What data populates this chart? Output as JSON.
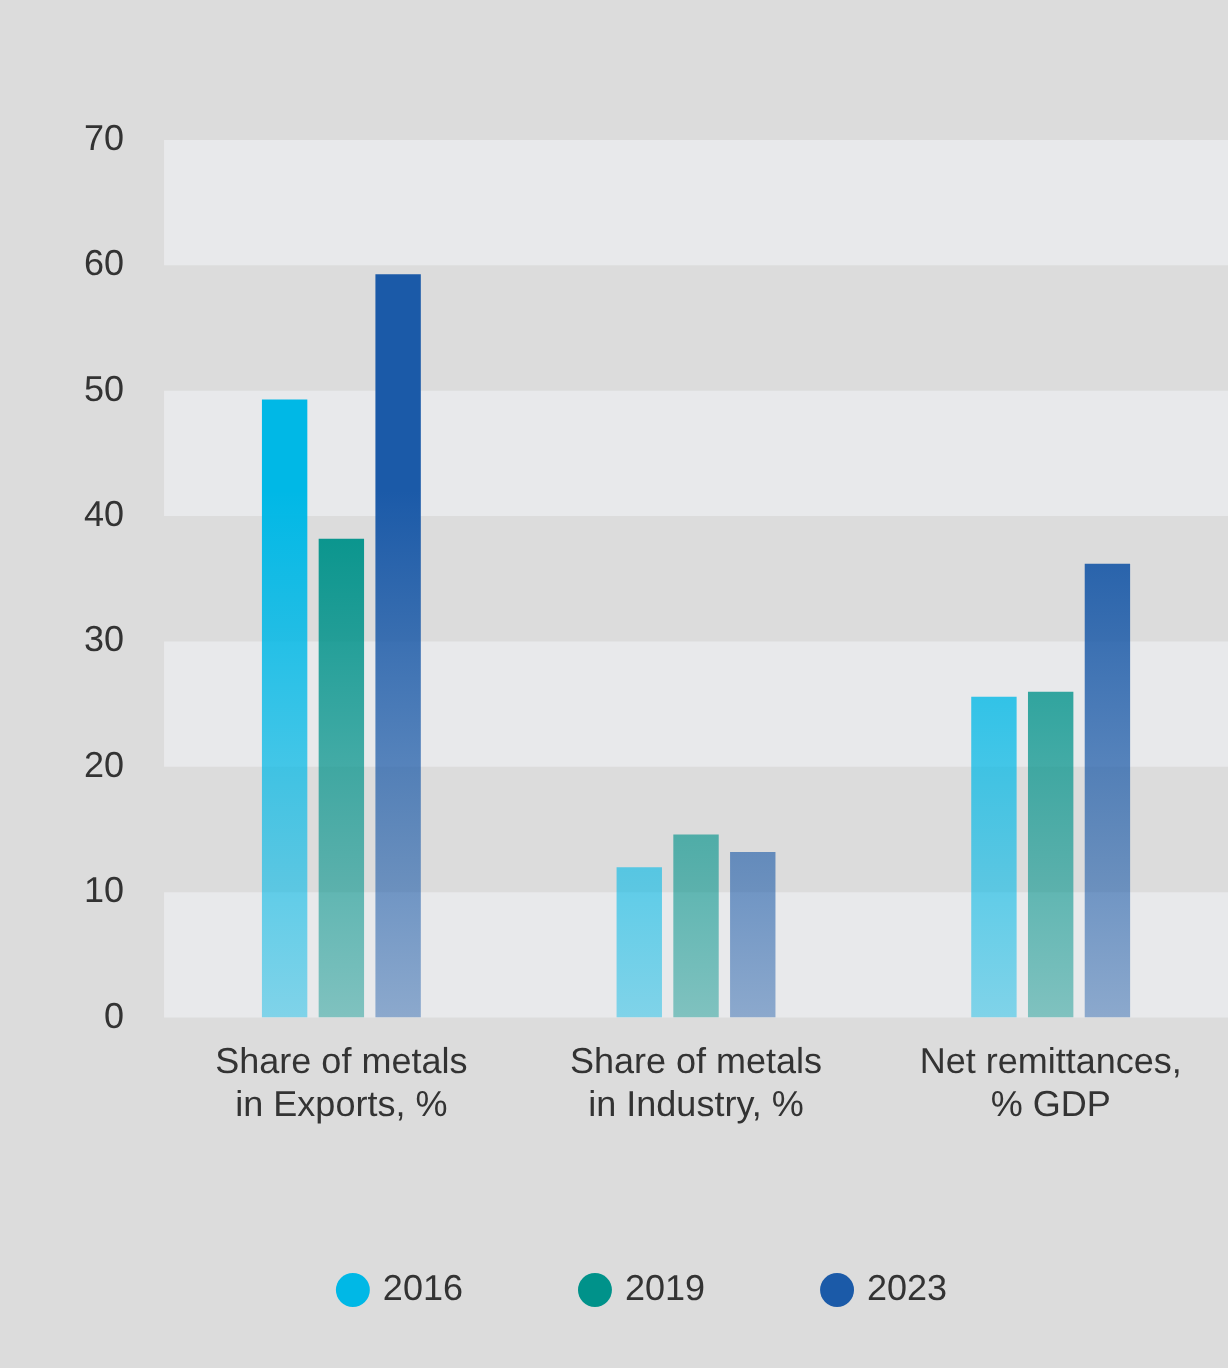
{
  "chart_data": {
    "type": "bar",
    "categories": [
      "Share of metals in Exports, %",
      "Share of metals in Industry, %",
      "Net remittances, % GDP"
    ],
    "series": [
      {
        "name": "2016",
        "color": "#00b8e6",
        "values": [
          49.3,
          12.0,
          25.6
        ]
      },
      {
        "name": "2019",
        "color": "#00928a",
        "values": [
          38.2,
          14.6,
          26.0
        ]
      },
      {
        "name": "2023",
        "color": "#1b5aa8",
        "values": [
          59.3,
          13.2,
          36.2
        ]
      }
    ],
    "ylim": [
      0,
      70
    ],
    "yticks": [
      0,
      10,
      20,
      30,
      40,
      50,
      60,
      70
    ],
    "legend": "bottom"
  }
}
